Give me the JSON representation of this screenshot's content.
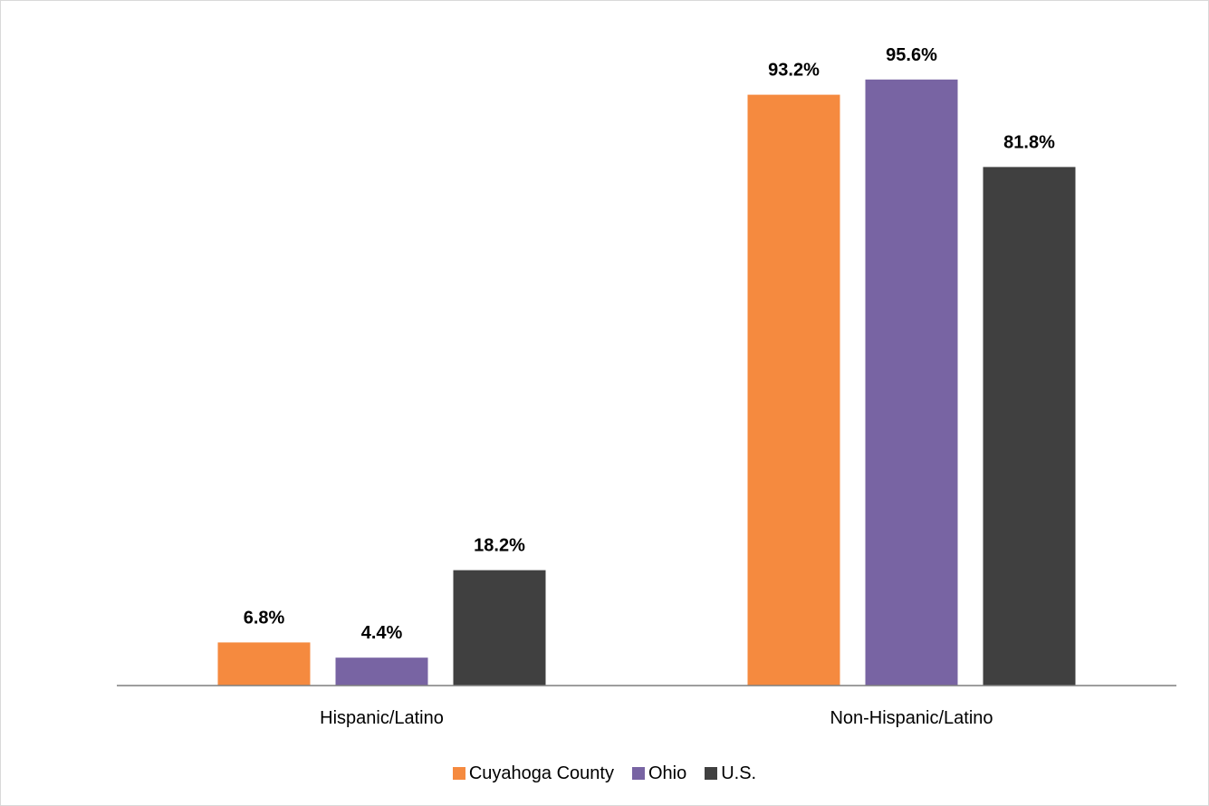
{
  "chart_data": {
    "type": "bar",
    "categories": [
      "Hispanic/Latino",
      "Non-Hispanic/Latino"
    ],
    "series": [
      {
        "name": "Cuyahoga County",
        "values": [
          6.8,
          93.2
        ],
        "labels": [
          "6.8%",
          "93.2%"
        ],
        "color": "#F58A3F"
      },
      {
        "name": "Ohio",
        "values": [
          4.4,
          95.6
        ],
        "labels": [
          "4.4%",
          "95.6%"
        ],
        "color": "#7864A3"
      },
      {
        "name": "U.S.",
        "values": [
          18.2,
          81.8
        ],
        "labels": [
          "18.2%",
          "81.8%"
        ],
        "color": "#404040"
      }
    ],
    "ylim": [
      0,
      100
    ],
    "grid": false,
    "legend": "bottom"
  }
}
